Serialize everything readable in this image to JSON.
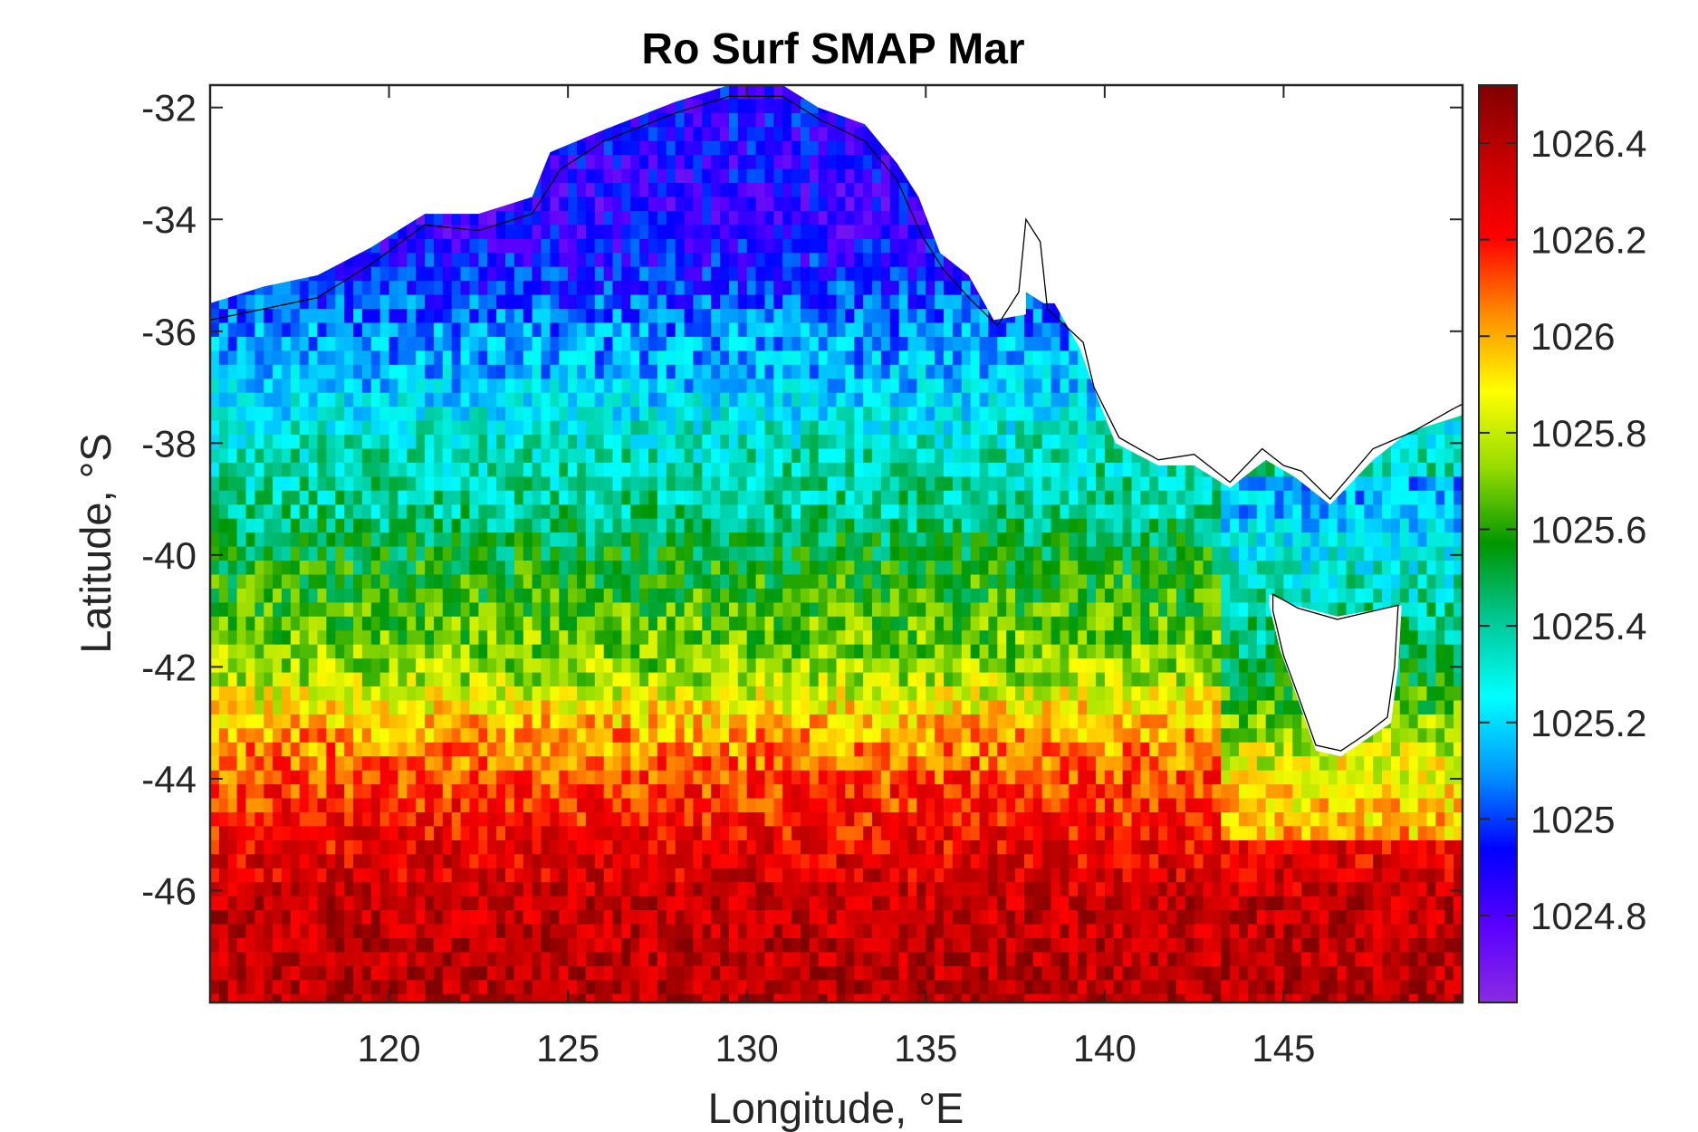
{
  "chart_data": {
    "type": "heatmap",
    "title": "Ro Surf SMAP Mar",
    "xlabel": "Longitude, °E",
    "ylabel": "Latitude, °S",
    "xlim": [
      115,
      150
    ],
    "ylim": [
      -48,
      -31.6
    ],
    "xticks": [
      {
        "value": 120,
        "label": "120"
      },
      {
        "value": 125,
        "label": "125"
      },
      {
        "value": 130,
        "label": "130"
      },
      {
        "value": 135,
        "label": "135"
      },
      {
        "value": 140,
        "label": "140"
      },
      {
        "value": 145,
        "label": "145"
      }
    ],
    "yticks": [
      {
        "value": -32,
        "label": "-32"
      },
      {
        "value": -34,
        "label": "-34"
      },
      {
        "value": -36,
        "label": "-36"
      },
      {
        "value": -38,
        "label": "-38"
      },
      {
        "value": -40,
        "label": "-40"
      },
      {
        "value": -42,
        "label": "-42"
      },
      {
        "value": -44,
        "label": "-44"
      },
      {
        "value": -46,
        "label": "-46"
      }
    ],
    "colorbar": {
      "range": [
        1024.62,
        1026.52
      ],
      "ticks": [
        {
          "value": 1024.8,
          "label": "1024.8"
        },
        {
          "value": 1025.0,
          "label": "1025"
        },
        {
          "value": 1025.2,
          "label": "1025.2"
        },
        {
          "value": 1025.4,
          "label": "1025.4"
        },
        {
          "value": 1025.6,
          "label": "1025.6"
        },
        {
          "value": 1025.8,
          "label": "1025.8"
        },
        {
          "value": 1026.0,
          "label": "1026"
        },
        {
          "value": 1026.2,
          "label": "1026.2"
        },
        {
          "value": 1026.4,
          "label": "1026.4"
        }
      ],
      "colormap": [
        "#8a2be2",
        "#5a00ff",
        "#0000ff",
        "#0096ff",
        "#00ffff",
        "#00c896",
        "#009600",
        "#96dc00",
        "#ffff00",
        "#ff8c00",
        "#ff0000",
        "#c80000",
        "#800000"
      ]
    },
    "grid": false,
    "cell_size_deg": [
      0.25,
      0.25
    ],
    "value_profile_by_latitude": [
      {
        "lat": -32,
        "value": 1024.9
      },
      {
        "lat": -34,
        "value": 1024.85
      },
      {
        "lat": -36,
        "value": 1025.1
      },
      {
        "lat": -37,
        "value": 1025.2
      },
      {
        "lat": -38,
        "value": 1025.35
      },
      {
        "lat": -39,
        "value": 1025.4
      },
      {
        "lat": -40,
        "value": 1025.55
      },
      {
        "lat": -41,
        "value": 1025.65
      },
      {
        "lat": -42,
        "value": 1025.75
      },
      {
        "lat": -43,
        "value": 1026.0
      },
      {
        "lat": -44,
        "value": 1026.15
      },
      {
        "lat": -46,
        "value": 1026.35
      },
      {
        "lat": -48,
        "value": 1026.4
      }
    ]
  }
}
